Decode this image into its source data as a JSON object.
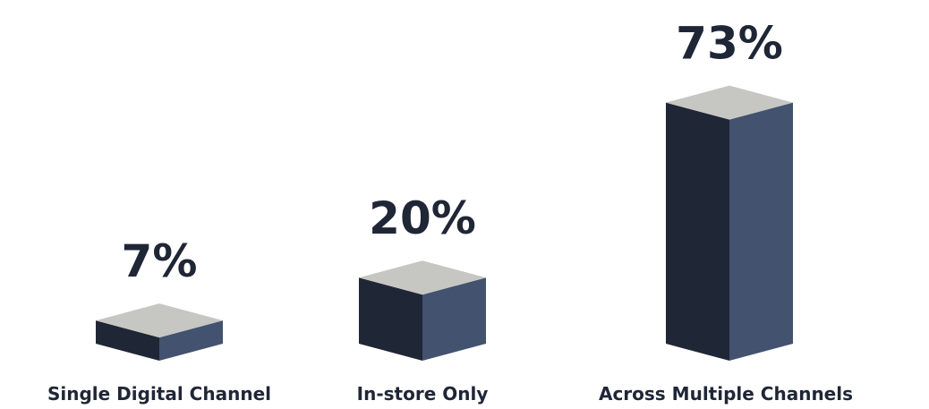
{
  "chart_data": {
    "type": "bar",
    "title": "",
    "xlabel": "",
    "ylabel": "",
    "unit": "%",
    "categories": [
      "Single Digital Channel",
      "In-store Only",
      "Across Multiple Channels"
    ],
    "values": [
      7,
      20,
      73
    ],
    "ylim": [
      0,
      73
    ],
    "grid": false,
    "style": "3d-box",
    "colors": {
      "top": "#c6c7c2",
      "front": "#1f2636",
      "side": "#43526e",
      "text": "#1f2636"
    }
  }
}
